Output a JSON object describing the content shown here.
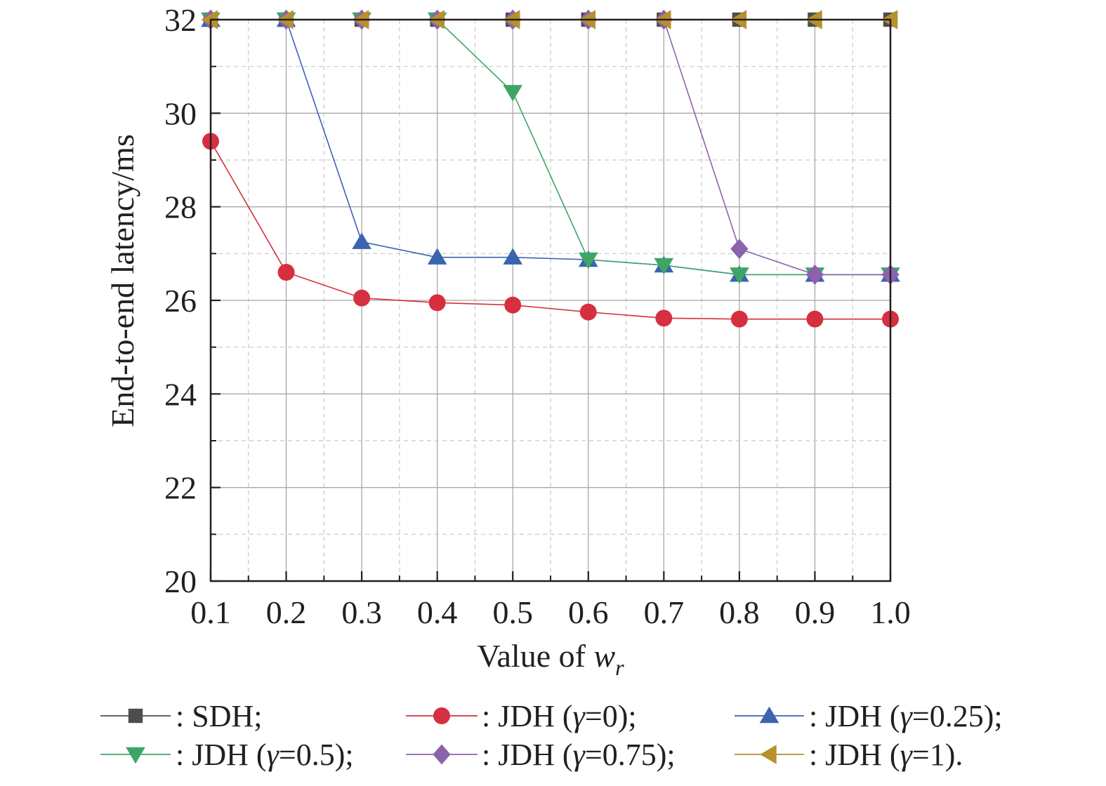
{
  "chart_data": {
    "type": "line",
    "title": "",
    "xlabel": "Value of ",
    "xlabel_var": "w",
    "xlabel_sub": "r",
    "ylabel": "End-to-end latency/ms",
    "xlim": [
      0.1,
      1.0
    ],
    "ylim": [
      20,
      32
    ],
    "xticks": [
      "0.1",
      "0.2",
      "0.3",
      "0.4",
      "0.5",
      "0.6",
      "0.7",
      "0.8",
      "0.9",
      "1.0"
    ],
    "yticks": [
      "20",
      "22",
      "24",
      "26",
      "28",
      "30",
      "32"
    ],
    "grid": true,
    "legend_position": "bottom",
    "x": [
      0.1,
      0.2,
      0.3,
      0.4,
      0.5,
      0.6,
      0.7,
      0.8,
      0.9,
      1.0
    ],
    "series": [
      {
        "name": "SDH",
        "legend_prefix": ": ",
        "legend_label": "SDH;",
        "marker": "square",
        "color": "#4d4d4f",
        "values": [
          32,
          32,
          32,
          32,
          32,
          32,
          32,
          32,
          32,
          32
        ]
      },
      {
        "name": "JDH (γ=0)",
        "legend_prefix": ": JDH (",
        "legend_gamma": "γ",
        "legend_suffix": "=0);",
        "marker": "circle",
        "color": "#d62f3f",
        "values": [
          29.4,
          26.6,
          26.05,
          25.95,
          25.9,
          25.75,
          25.62,
          25.6,
          25.6,
          25.6
        ]
      },
      {
        "name": "JDH (γ=0.25)",
        "legend_prefix": ": JDH (",
        "legend_gamma": "γ",
        "legend_suffix": "=0.25);",
        "marker": "triangle-up",
        "color": "#3a64ad",
        "values": [
          32,
          32,
          27.25,
          26.92,
          26.92,
          26.87,
          26.75,
          26.55,
          26.55,
          26.55
        ]
      },
      {
        "name": "JDH (γ=0.5)",
        "legend_prefix": ": JDH (",
        "legend_gamma": "γ",
        "legend_suffix": "=0.5);",
        "marker": "triangle-down",
        "color": "#3da666",
        "values": [
          32,
          32,
          32,
          32,
          30.45,
          26.87,
          26.75,
          26.55,
          26.55,
          26.55
        ]
      },
      {
        "name": "JDH (γ=0.75)",
        "legend_prefix": ": JDH (",
        "legend_gamma": "γ",
        "legend_suffix": "=0.75);",
        "marker": "diamond",
        "color": "#8b62ad",
        "values": [
          32,
          32,
          32,
          32,
          32,
          32,
          32,
          27.1,
          26.55,
          26.55
        ]
      },
      {
        "name": "JDH (γ=1)",
        "legend_prefix": ": JDH (",
        "legend_gamma": "γ",
        "legend_suffix": "=1).",
        "marker": "triangle-left",
        "color": "#b8912c",
        "values": [
          32,
          32,
          32,
          32,
          32,
          32,
          32,
          32,
          32,
          32
        ]
      }
    ]
  }
}
